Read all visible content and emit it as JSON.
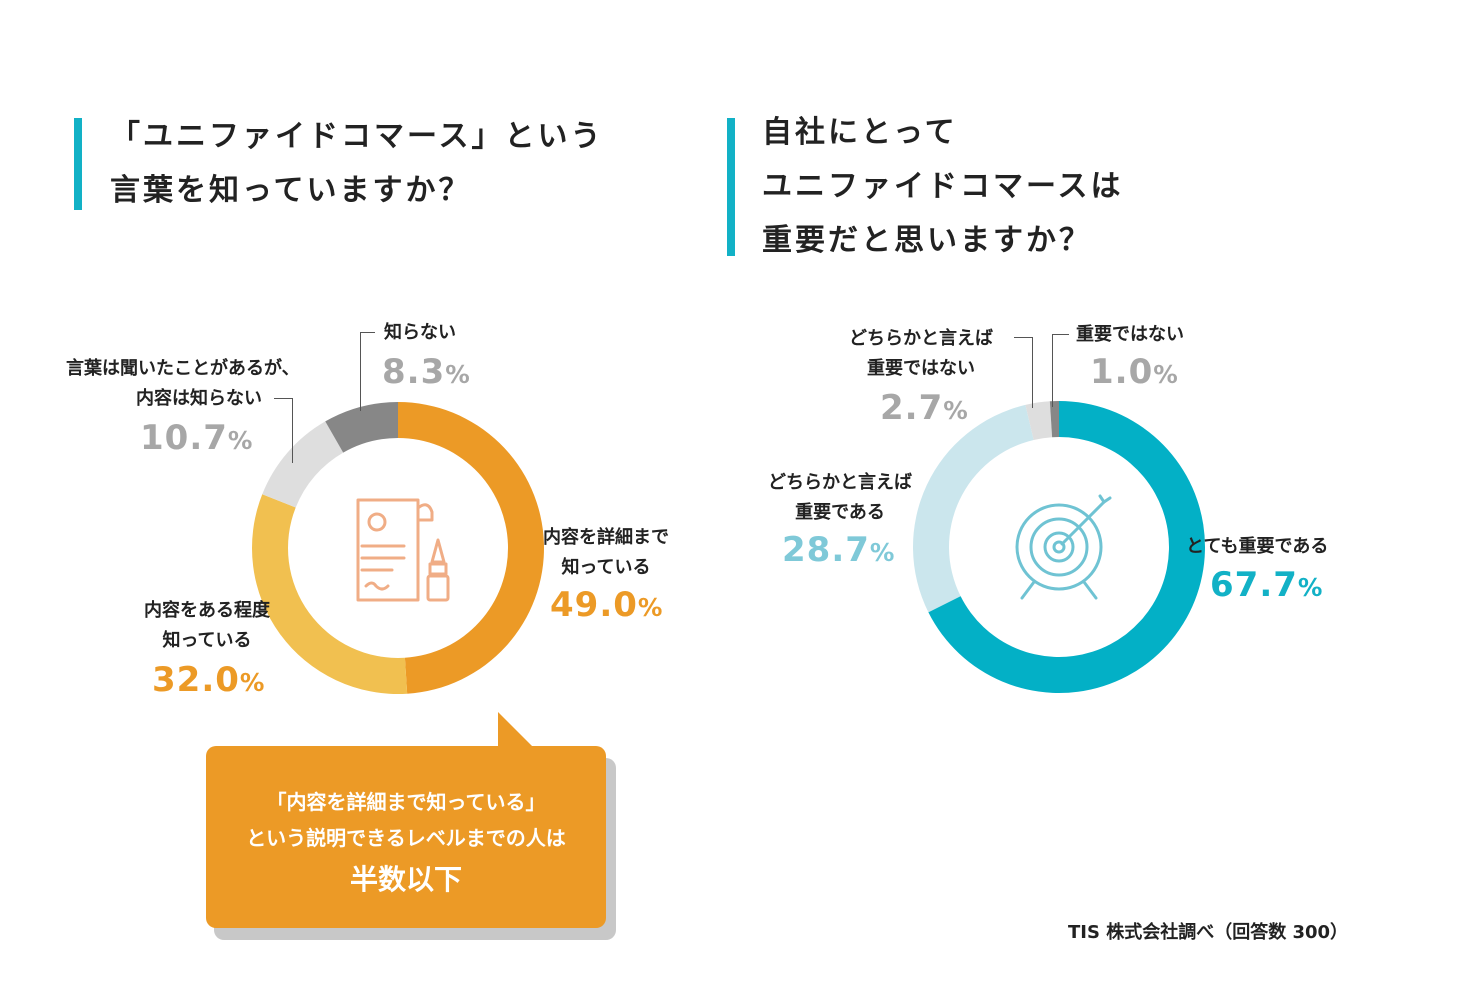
{
  "q1": {
    "title_lines": [
      "「ユニファイドコマース」という",
      "言葉を知っていますか？"
    ],
    "accent": "#12b1c6"
  },
  "q2": {
    "title_lines": [
      "自社にとって",
      "ユニファイドコマースは",
      "重要だと思いますか？"
    ]
  },
  "chart_data": [
    {
      "type": "pie",
      "donut": true,
      "center_icon": "document-pen-icon",
      "categories": [
        "内容を詳細まで知っている",
        "内容をある程度知っている",
        "言葉は聞いたことがあるが、内容は知らない",
        "知らない"
      ],
      "values": [
        49.0,
        32.0,
        10.7,
        8.3
      ],
      "colors": [
        "#ec9a26",
        "#f1c050",
        "#dedede",
        "#878787"
      ],
      "labels": [
        {
          "lines": [
            "内容を詳細まで",
            "知っている"
          ],
          "value": "49.0",
          "unit": "%"
        },
        {
          "lines": [
            "内容をある程度",
            "知っている"
          ],
          "value": "32.0",
          "unit": "%"
        },
        {
          "lines": [
            "言葉は聞いたことがあるが、",
            "内容は知らない"
          ],
          "value": "10.7",
          "unit": "%"
        },
        {
          "lines": [
            "知らない"
          ],
          "value": "8.3",
          "unit": "%"
        }
      ]
    },
    {
      "type": "pie",
      "donut": true,
      "center_icon": "target-arrow-icon",
      "categories": [
        "とても重要である",
        "どちらかと言えば重要である",
        "どちらかと言えば重要ではない",
        "重要ではない"
      ],
      "values": [
        67.7,
        28.7,
        2.7,
        1.0
      ],
      "colors": [
        "#03b0c6",
        "#cbe6ed",
        "#dedede",
        "#878787"
      ],
      "labels": [
        {
          "lines": [
            "とても重要である"
          ],
          "value": "67.7",
          "unit": "%"
        },
        {
          "lines": [
            "どちらかと言えば",
            "重要である"
          ],
          "value": "28.7",
          "unit": "%"
        },
        {
          "lines": [
            "どちらかと言えば",
            "重要ではない"
          ],
          "value": "2.7",
          "unit": "%"
        },
        {
          "lines": [
            "重要ではない"
          ],
          "value": "1.0",
          "unit": "%"
        }
      ]
    }
  ],
  "callout": {
    "line1": "「内容を詳細まで知っている」",
    "line2": "という説明できるレベルまでの人は",
    "line3": "半数以下"
  },
  "footer": "TIS 株式会社調べ（回答数 300）"
}
